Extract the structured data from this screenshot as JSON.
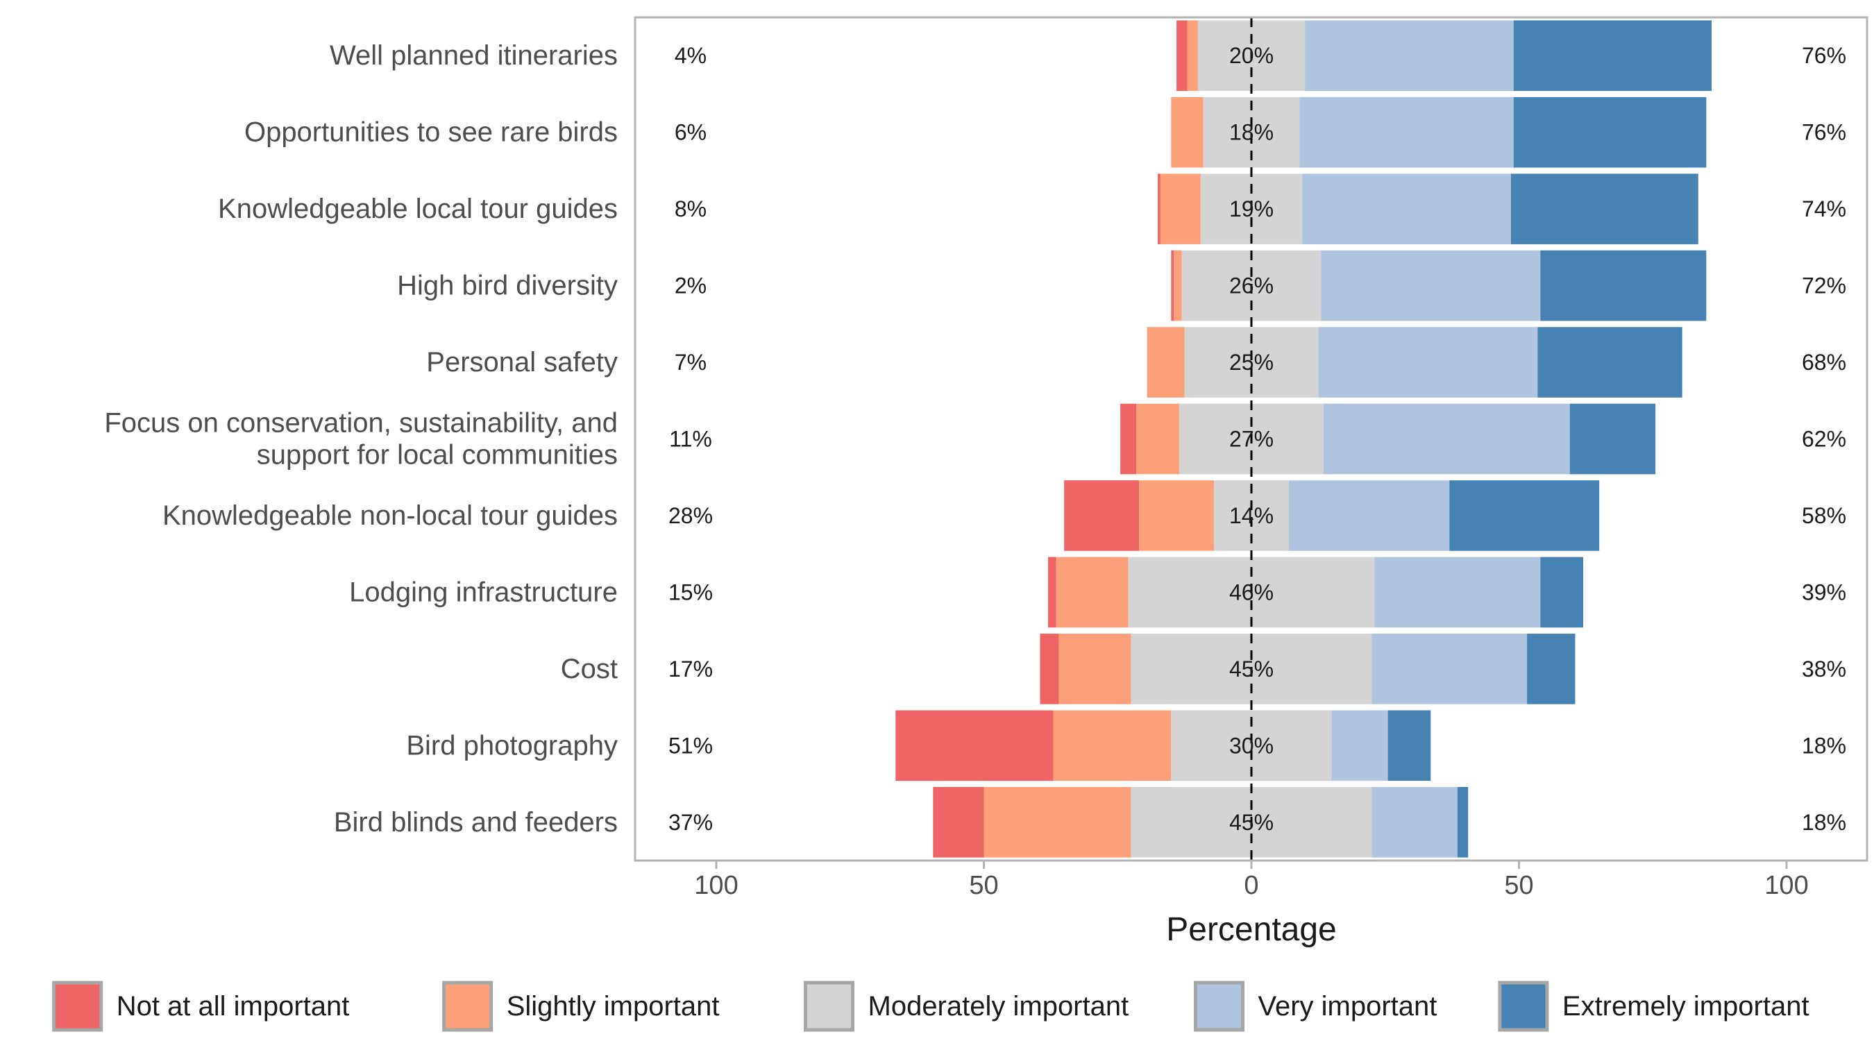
{
  "chart_data": {
    "type": "bar",
    "subtype": "diverging-stacked-likert",
    "xlabel": "Percentage",
    "xlim": [
      -115,
      115
    ],
    "x_ticks": [
      {
        "value": -100,
        "label": "100"
      },
      {
        "value": -50,
        "label": "50"
      },
      {
        "value": 0,
        "label": "0"
      },
      {
        "value": 50,
        "label": "50"
      },
      {
        "value": 100,
        "label": "100"
      }
    ],
    "legend_position": "bottom",
    "levels": [
      {
        "name": "Not at all important",
        "color": "#ef6464"
      },
      {
        "name": "Slightly important",
        "color": "#fca07a"
      },
      {
        "name": "Moderately important",
        "color": "#d4d4d4"
      },
      {
        "name": "Very important",
        "color": "#b0c4de"
      },
      {
        "name": "Extremely important",
        "color": "#4682b4"
      }
    ],
    "categories": [
      {
        "label": [
          "Well planned itineraries"
        ],
        "values": [
          2,
          2,
          20,
          39,
          37
        ],
        "low_label": "4%",
        "mid_label": "20%",
        "high_label": "76%"
      },
      {
        "label": [
          "Opportunities to see rare birds"
        ],
        "values": [
          0,
          6,
          18,
          40,
          36
        ],
        "low_label": "6%",
        "mid_label": "18%",
        "high_label": "76%"
      },
      {
        "label": [
          "Knowledgeable local tour guides"
        ],
        "values": [
          0.5,
          7.5,
          19,
          39,
          35
        ],
        "low_label": "8%",
        "mid_label": "19%",
        "high_label": "74%"
      },
      {
        "label": [
          "High bird diversity"
        ],
        "values": [
          0.5,
          1.5,
          26,
          41,
          31
        ],
        "low_label": "2%",
        "mid_label": "26%",
        "high_label": "72%"
      },
      {
        "label": [
          "Personal safety"
        ],
        "values": [
          0,
          7,
          25,
          41,
          27
        ],
        "low_label": "7%",
        "mid_label": "25%",
        "high_label": "68%"
      },
      {
        "label": [
          "Focus on conservation, sustainability, and",
          "support for local communities"
        ],
        "values": [
          3,
          8,
          27,
          46,
          16
        ],
        "low_label": "11%",
        "mid_label": "27%",
        "high_label": "62%"
      },
      {
        "label": [
          "Knowledgeable non-local tour guides"
        ],
        "values": [
          14,
          14,
          14,
          30,
          28
        ],
        "low_label": "28%",
        "mid_label": "14%",
        "high_label": "58%"
      },
      {
        "label": [
          "Lodging infrastructure"
        ],
        "values": [
          1.5,
          13.5,
          46,
          31,
          8
        ],
        "low_label": "15%",
        "mid_label": "46%",
        "high_label": "39%"
      },
      {
        "label": [
          "Cost"
        ],
        "values": [
          3.5,
          13.5,
          45,
          29,
          9
        ],
        "low_label": "17%",
        "mid_label": "45%",
        "high_label": "38%"
      },
      {
        "label": [
          "Bird photography"
        ],
        "values": [
          29.5,
          22,
          30,
          10.5,
          8
        ],
        "low_label": "51%",
        "mid_label": "30%",
        "high_label": "18%"
      },
      {
        "label": [
          "Bird blinds and feeders"
        ],
        "values": [
          9.5,
          27.5,
          45,
          16,
          2
        ],
        "low_label": "37%",
        "mid_label": "45%",
        "high_label": "18%"
      }
    ]
  }
}
